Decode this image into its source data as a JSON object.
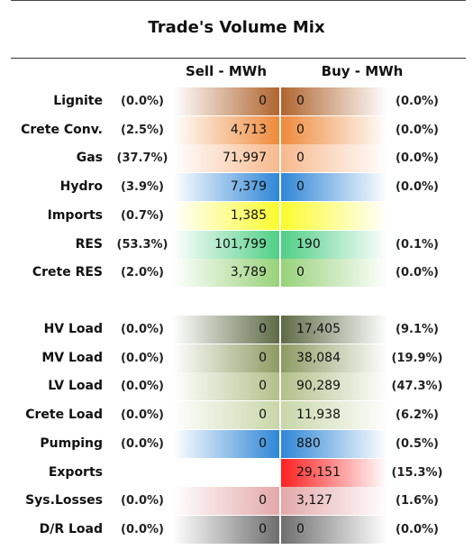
{
  "chart_data": {
    "type": "table",
    "title": "Trade's Volume Mix",
    "columns": {
      "sell": "Sell - MWh",
      "buy": "Buy - MWh"
    },
    "groups": [
      {
        "rows": [
          {
            "label": "Lignite",
            "sell_pct": "(0.0%)",
            "sell": "0",
            "buy": "0",
            "buy_pct": "(0.0%)",
            "color": "#b0652f"
          },
          {
            "label": "Crete Conv.",
            "sell_pct": "(2.5%)",
            "sell": "4,713",
            "buy": "0",
            "buy_pct": "(0.0%)",
            "color": "#ee8a3a"
          },
          {
            "label": "Gas",
            "sell_pct": "(37.7%)",
            "sell": "71,997",
            "buy": "0",
            "buy_pct": "(0.0%)",
            "color": "#f7b98e"
          },
          {
            "label": "Hydro",
            "sell_pct": "(3.9%)",
            "sell": "7,379",
            "buy": "0",
            "buy_pct": "(0.0%)",
            "color": "#2f86d6"
          },
          {
            "label": "Imports",
            "sell_pct": "(0.7%)",
            "sell": "1,385",
            "buy": "",
            "buy_pct": "",
            "color": "#fbfb2f"
          },
          {
            "label": "RES",
            "sell_pct": "(53.3%)",
            "sell": "101,799",
            "buy": "190",
            "buy_pct": "(0.1%)",
            "color": "#4fcf86"
          },
          {
            "label": "Crete RES",
            "sell_pct": "(2.0%)",
            "sell": "3,789",
            "buy": "0",
            "buy_pct": "(0.0%)",
            "color": "#98d27a"
          }
        ]
      },
      {
        "rows": [
          {
            "label": "HV Load",
            "sell_pct": "(0.0%)",
            "sell": "0",
            "buy": "17,405",
            "buy_pct": "(9.1%)",
            "color": "#5e6a46"
          },
          {
            "label": "MV Load",
            "sell_pct": "(0.0%)",
            "sell": "0",
            "buy": "38,084",
            "buy_pct": "(19.9%)",
            "color": "#8d9a62"
          },
          {
            "label": "LV Load",
            "sell_pct": "(0.0%)",
            "sell": "0",
            "buy": "90,289",
            "buy_pct": "(47.3%)",
            "color": "#b2c08a"
          },
          {
            "label": "Crete Load",
            "sell_pct": "(0.0%)",
            "sell": "0",
            "buy": "11,938",
            "buy_pct": "(6.2%)",
            "color": "#c8d6a8"
          },
          {
            "label": "Pumping",
            "sell_pct": "(0.0%)",
            "sell": "0",
            "buy": "880",
            "buy_pct": "(0.5%)",
            "color": "#2f86d6"
          },
          {
            "label": "Exports",
            "sell_pct": "",
            "sell": "",
            "buy": "29,151",
            "buy_pct": "(15.3%)",
            "color": "#ff1f1f"
          },
          {
            "label": "Sys.Losses",
            "sell_pct": "(0.0%)",
            "sell": "0",
            "buy": "3,127",
            "buy_pct": "(1.6%)",
            "color": "#e3a8aa"
          },
          {
            "label": "D/R Load",
            "sell_pct": "(0.0%)",
            "sell": "0",
            "buy": "0",
            "buy_pct": "(0.0%)",
            "color": "#6e6e6e"
          }
        ]
      }
    ]
  }
}
